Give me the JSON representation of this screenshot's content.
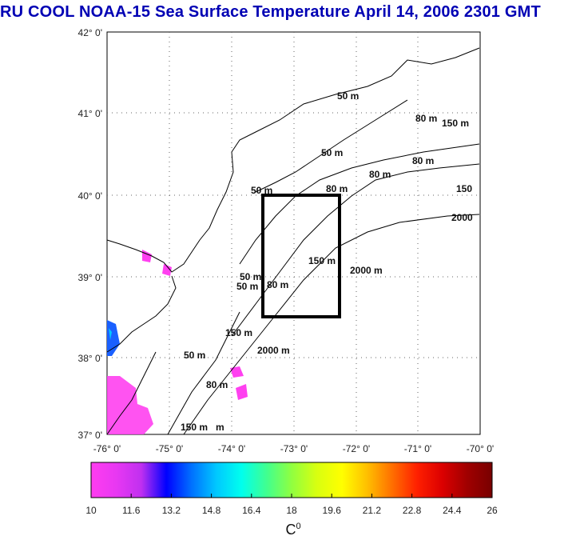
{
  "title": "RU COOL  NOAA-15 Sea Surface Temperature April 14, 2006 2301 GMT",
  "map": {
    "lat_ticks": [
      "42° 0'",
      "41° 0'",
      "40° 0'",
      "39° 0'",
      "38° 0'",
      "37° 0'"
    ],
    "lon_ticks": [
      "-76° 0'",
      "-75° 0'",
      "-74° 0'",
      "-73° 0'",
      "-72° 0'",
      "-71° 0'",
      "-70° 0'"
    ],
    "lat_range": [
      37,
      42
    ],
    "lon_range": [
      -76,
      -70
    ],
    "grid": true,
    "study_box": {
      "lon": [
        -73.5,
        -72.25
      ],
      "lat": [
        38.5,
        40.0
      ]
    },
    "contour_labels": [
      "50 m",
      "80 m",
      "150 m",
      "50 m",
      "50 m",
      "80 m",
      "80 m",
      "150",
      "2000",
      "150 m",
      "2000 m",
      "50 m",
      "80 m",
      "50 m",
      "80 m",
      "150 m",
      "2000 m",
      "50 m",
      "80 m",
      "150 m",
      "m"
    ]
  },
  "colorbar": {
    "colormap": [
      "#ff3df0",
      "#e838f2",
      "#c030f0",
      "#0000ff",
      "#0070ff",
      "#00c8ff",
      "#00ffee",
      "#40ff90",
      "#90ff40",
      "#d8ff10",
      "#ffff00",
      "#ffc000",
      "#ff7000",
      "#ff2000",
      "#dc0000",
      "#a00000",
      "#780000"
    ],
    "ticks": [
      "10",
      "11.6",
      "13.2",
      "14.8",
      "16.4",
      "18",
      "19.6",
      "21.2",
      "22.8",
      "24.4",
      "26"
    ],
    "range": [
      10,
      26
    ],
    "unit": "C",
    "unit_superscript": "0"
  },
  "colors": {
    "title": "#0000b4",
    "land_mask": "#ffffff",
    "study_box": "#000000"
  }
}
